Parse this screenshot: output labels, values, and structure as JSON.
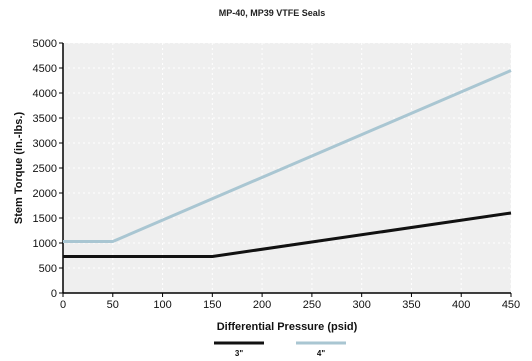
{
  "chart_data": {
    "type": "line",
    "title": "MP-40, MP39 VTFE Seals",
    "xlabel": "Differential Pressure (psid)",
    "ylabel": "Stem Torque (in.-lbs.)",
    "xlim": [
      0,
      450
    ],
    "ylim": [
      0,
      5000
    ],
    "xticks": [
      0,
      50,
      100,
      150,
      200,
      250,
      300,
      350,
      400,
      450
    ],
    "yticks": [
      0,
      500,
      1000,
      1500,
      2000,
      2500,
      3000,
      3500,
      4000,
      4500,
      5000
    ],
    "grid": true,
    "legend_position": "bottom-center",
    "series": [
      {
        "name": "3\"",
        "color": "#111111",
        "x": [
          0,
          150,
          450
        ],
        "y": [
          730,
          730,
          1600
        ]
      },
      {
        "name": "4\"",
        "color": "#a9c6d2",
        "x": [
          0,
          50,
          450
        ],
        "y": [
          1030,
          1030,
          4450
        ]
      }
    ]
  },
  "colors": {
    "plot_background": "#efefef",
    "axis": "#000000"
  }
}
